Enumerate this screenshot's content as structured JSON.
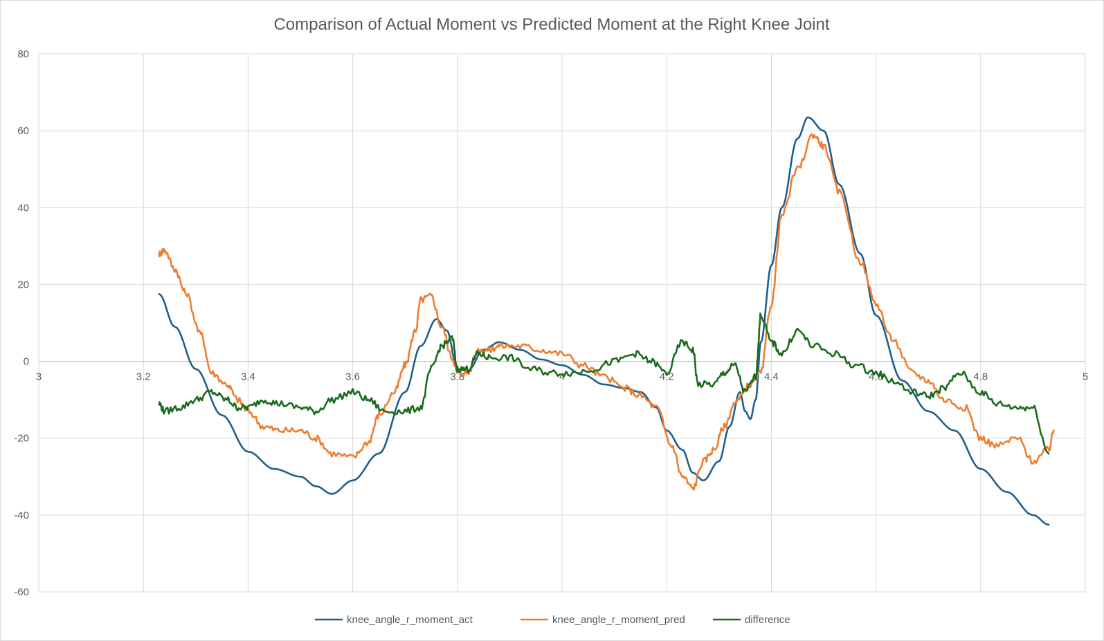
{
  "chart_data": {
    "type": "line",
    "title": "Comparison of Actual Moment vs Predicted Moment at the Right Knee Joint",
    "xlabel": "",
    "ylabel": "",
    "xlim": [
      3,
      5
    ],
    "ylim": [
      -60,
      80
    ],
    "x_ticks": [
      3,
      3.2,
      3.4,
      3.6,
      3.8,
      4,
      4.2,
      4.4,
      4.6,
      4.8,
      5
    ],
    "x_tick_labels": [
      "3",
      "3.2",
      "3.4",
      "3.6",
      "3.8",
      "4",
      "4.2",
      "4.4",
      "4.6",
      "4.8",
      "5"
    ],
    "y_ticks": [
      -60,
      -40,
      -20,
      0,
      20,
      40,
      60,
      80
    ],
    "y_tick_labels": [
      "-60",
      "-40",
      "-20",
      "0",
      "20",
      "40",
      "60",
      "80"
    ],
    "grid": true,
    "legend_position": "bottom",
    "series": [
      {
        "name": "knee_angle_r_moment_act",
        "color": "#1f5f8b",
        "points": [
          [
            3.23,
            17.5
          ],
          [
            3.26,
            9
          ],
          [
            3.3,
            -2
          ],
          [
            3.35,
            -14
          ],
          [
            3.4,
            -23.5
          ],
          [
            3.45,
            -28
          ],
          [
            3.5,
            -30
          ],
          [
            3.53,
            -32.5
          ],
          [
            3.56,
            -34.5
          ],
          [
            3.6,
            -31
          ],
          [
            3.65,
            -24
          ],
          [
            3.7,
            -8
          ],
          [
            3.73,
            4
          ],
          [
            3.76,
            11
          ],
          [
            3.78,
            8
          ],
          [
            3.8,
            -2
          ],
          [
            3.82,
            -2.5
          ],
          [
            3.85,
            3
          ],
          [
            3.88,
            5
          ],
          [
            3.92,
            3
          ],
          [
            3.96,
            0.5
          ],
          [
            4.0,
            -1
          ],
          [
            4.04,
            -3.5
          ],
          [
            4.08,
            -6
          ],
          [
            4.12,
            -7
          ],
          [
            4.15,
            -8
          ],
          [
            4.18,
            -12
          ],
          [
            4.2,
            -18
          ],
          [
            4.23,
            -23
          ],
          [
            4.25,
            -29
          ],
          [
            4.27,
            -31
          ],
          [
            4.3,
            -26
          ],
          [
            4.32,
            -17
          ],
          [
            4.34,
            -8
          ],
          [
            4.35,
            -13
          ],
          [
            4.36,
            -15
          ],
          [
            4.37,
            -10
          ],
          [
            4.38,
            5
          ],
          [
            4.4,
            25
          ],
          [
            4.42,
            40
          ],
          [
            4.45,
            58
          ],
          [
            4.47,
            63.5
          ],
          [
            4.5,
            60
          ],
          [
            4.53,
            46
          ],
          [
            4.57,
            28
          ],
          [
            4.6,
            12
          ],
          [
            4.65,
            -5
          ],
          [
            4.7,
            -13
          ],
          [
            4.75,
            -18
          ],
          [
            4.8,
            -28
          ],
          [
            4.85,
            -34
          ],
          [
            4.9,
            -40
          ],
          [
            4.93,
            -42.5
          ]
        ]
      },
      {
        "name": "knee_angle_r_moment_pred",
        "color": "#ed7d31",
        "points": [
          [
            3.23,
            28
          ],
          [
            3.24,
            29
          ],
          [
            3.26,
            24
          ],
          [
            3.28,
            18
          ],
          [
            3.31,
            7
          ],
          [
            3.33,
            -3
          ],
          [
            3.36,
            -6
          ],
          [
            3.38,
            -10
          ],
          [
            3.4,
            -13
          ],
          [
            3.43,
            -17
          ],
          [
            3.46,
            -18
          ],
          [
            3.5,
            -18
          ],
          [
            3.53,
            -20
          ],
          [
            3.56,
            -24
          ],
          [
            3.6,
            -25
          ],
          [
            3.63,
            -21
          ],
          [
            3.65,
            -14
          ],
          [
            3.68,
            -8
          ],
          [
            3.7,
            -1
          ],
          [
            3.72,
            8
          ],
          [
            3.73,
            16
          ],
          [
            3.75,
            17
          ],
          [
            3.77,
            9
          ],
          [
            3.79,
            1
          ],
          [
            3.8,
            -3
          ],
          [
            3.82,
            -3
          ],
          [
            3.84,
            3
          ],
          [
            3.86,
            3
          ],
          [
            3.88,
            4
          ],
          [
            3.92,
            4
          ],
          [
            3.96,
            3
          ],
          [
            4.0,
            2
          ],
          [
            4.04,
            -1
          ],
          [
            4.08,
            -4
          ],
          [
            4.12,
            -7
          ],
          [
            4.15,
            -9
          ],
          [
            4.18,
            -12
          ],
          [
            4.21,
            -22
          ],
          [
            4.23,
            -30
          ],
          [
            4.25,
            -33
          ],
          [
            4.27,
            -26
          ],
          [
            4.29,
            -23
          ],
          [
            4.31,
            -17
          ],
          [
            4.33,
            -11
          ],
          [
            4.36,
            -6
          ],
          [
            4.38,
            -3
          ],
          [
            4.4,
            15
          ],
          [
            4.42,
            38
          ],
          [
            4.45,
            50
          ],
          [
            4.48,
            59
          ],
          [
            4.5,
            56
          ],
          [
            4.53,
            44
          ],
          [
            4.57,
            26
          ],
          [
            4.6,
            15
          ],
          [
            4.63,
            6
          ],
          [
            4.67,
            -3
          ],
          [
            4.7,
            -5
          ],
          [
            4.73,
            -10
          ],
          [
            4.77,
            -12
          ],
          [
            4.8,
            -20
          ],
          [
            4.83,
            -22
          ],
          [
            4.87,
            -20
          ],
          [
            4.9,
            -26
          ],
          [
            4.93,
            -23
          ],
          [
            4.94,
            -18
          ]
        ]
      },
      {
        "name": "difference",
        "color": "#196b1e",
        "points": [
          [
            3.23,
            -11
          ],
          [
            3.24,
            -13
          ],
          [
            3.27,
            -12
          ],
          [
            3.3,
            -10
          ],
          [
            3.33,
            -8
          ],
          [
            3.36,
            -10
          ],
          [
            3.38,
            -12
          ],
          [
            3.4,
            -12
          ],
          [
            3.43,
            -10
          ],
          [
            3.46,
            -11
          ],
          [
            3.5,
            -12
          ],
          [
            3.53,
            -13
          ],
          [
            3.56,
            -10
          ],
          [
            3.6,
            -8
          ],
          [
            3.63,
            -10
          ],
          [
            3.66,
            -13
          ],
          [
            3.7,
            -13
          ],
          [
            3.73,
            -12
          ],
          [
            3.75,
            -2
          ],
          [
            3.77,
            4
          ],
          [
            3.79,
            6
          ],
          [
            3.8,
            -2
          ],
          [
            3.82,
            -2
          ],
          [
            3.84,
            2
          ],
          [
            3.86,
            1
          ],
          [
            3.9,
            1
          ],
          [
            3.94,
            -2
          ],
          [
            3.98,
            -3
          ],
          [
            4.02,
            -3
          ],
          [
            4.06,
            -2
          ],
          [
            4.1,
            0
          ],
          [
            4.14,
            2
          ],
          [
            4.17,
            0
          ],
          [
            4.2,
            -3
          ],
          [
            4.23,
            5
          ],
          [
            4.25,
            3
          ],
          [
            4.26,
            -6
          ],
          [
            4.29,
            -6
          ],
          [
            4.31,
            -3
          ],
          [
            4.33,
            -1
          ],
          [
            4.35,
            -8
          ],
          [
            4.37,
            -4
          ],
          [
            4.38,
            12
          ],
          [
            4.4,
            5
          ],
          [
            4.42,
            2
          ],
          [
            4.45,
            8
          ],
          [
            4.48,
            4
          ],
          [
            4.52,
            2
          ],
          [
            4.56,
            -1
          ],
          [
            4.6,
            -3
          ],
          [
            4.63,
            -5
          ],
          [
            4.67,
            -8
          ],
          [
            4.7,
            -9
          ],
          [
            4.73,
            -7
          ],
          [
            4.76,
            -3
          ],
          [
            4.8,
            -8
          ],
          [
            4.83,
            -11
          ],
          [
            4.87,
            -12
          ],
          [
            4.9,
            -12
          ],
          [
            4.93,
            -24
          ]
        ]
      }
    ]
  }
}
